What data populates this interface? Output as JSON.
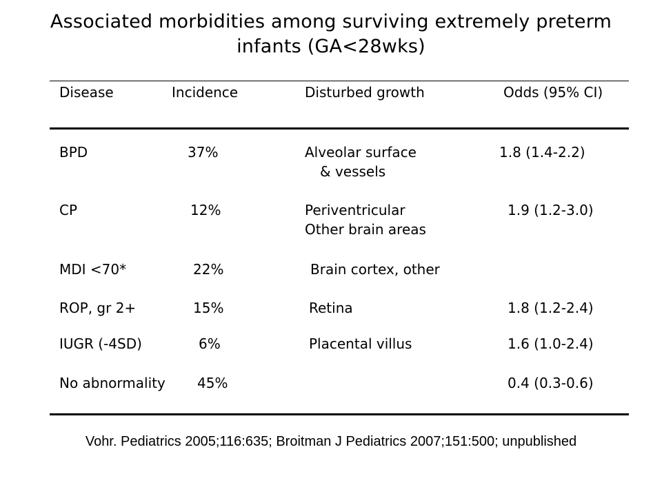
{
  "slide": {
    "title_line1": "Associated morbidities among  surviving extremely preterm",
    "title_line2": "infants (GA<28wks)",
    "source": "Vohr. Pediatrics 2005;116:635;  Broitman J Pediatrics 2007;151:500;  unpublished"
  },
  "table": {
    "headers": [
      "Disease",
      "Incidence",
      "Disturbed growth",
      "Odds (95% CI)"
    ],
    "rows": [
      {
        "disease": "BPD",
        "incidence": "37%",
        "growth_line1": "Alveolar surface",
        "growth_line2": "& vessels",
        "odds": "1.8 (1.4-2.2)"
      },
      {
        "disease": "CP",
        "incidence": "12%",
        "growth_line1": "Periventricular",
        "growth_line2": "Other brain areas",
        "odds": "1.9 (1.2-3.0)"
      },
      {
        "disease": "MDI <70*",
        "incidence": "22%",
        "growth_line1": "Brain cortex, other",
        "growth_line2": "",
        "odds": ""
      },
      {
        "disease": "ROP, gr 2+",
        "incidence": "15%",
        "growth_line1": "Retina",
        "growth_line2": "",
        "odds": "1.8 (1.2-2.4)"
      },
      {
        "disease": "IUGR (-4SD)",
        "incidence": "6%",
        "growth_line1": "Placental villus",
        "growth_line2": "",
        "odds": "1.6 (1.0-2.4)"
      },
      {
        "disease": "No abnormality",
        "incidence": "45%",
        "growth_line1": "",
        "growth_line2": "",
        "odds": "0.4 (0.3-0.6)"
      }
    ]
  }
}
